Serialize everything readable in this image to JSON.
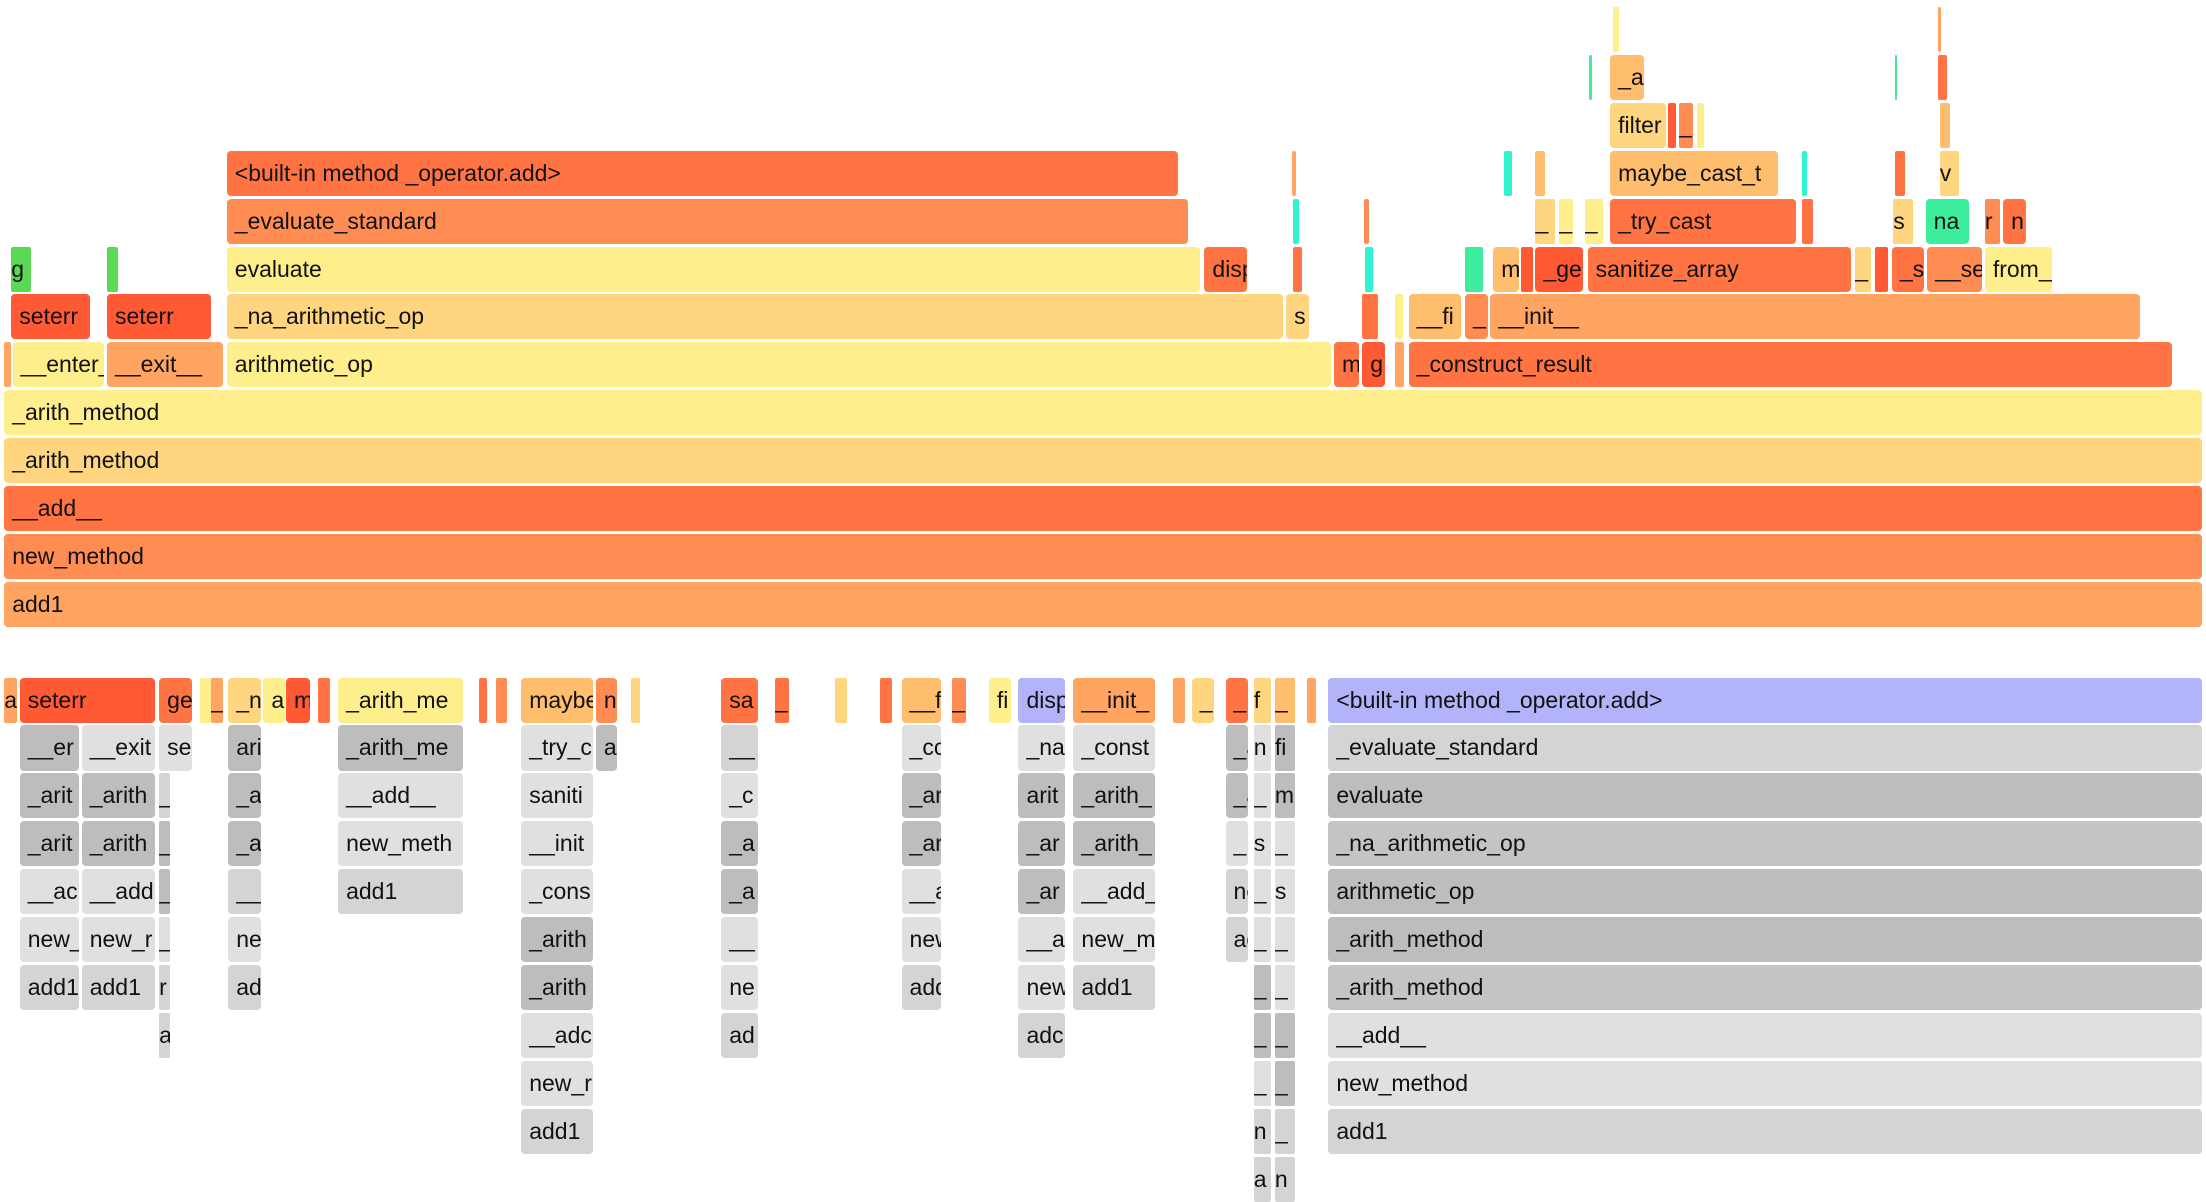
{
  "colors": {
    "red": "#ff5a33",
    "orange_dark": "#ff7442",
    "orange": "#ff8c52",
    "orange_light": "#ffa561",
    "amber": "#ffbd6e",
    "gold": "#ffd580",
    "yellow": "#ffee8c",
    "green": "#5bd955",
    "teal": "#3ded9e",
    "cyan": "#2ef5d0",
    "lavender": "#b3b3fa",
    "gray1": "#e0e0e0",
    "gray2": "#d4d4d4",
    "gray3": "#c4c4c4",
    "gray4": "#bdbdbd"
  },
  "flame_graph": {
    "frames": [
      {
        "label": "add1",
        "color": "orange_light"
      },
      {
        "label": "new_method",
        "color": "orange"
      },
      {
        "label": "__add__",
        "color": "orange_dark"
      },
      {
        "label": "_arith_method",
        "color": "gold"
      },
      {
        "label": "_arith_method",
        "color": "yellow"
      },
      {
        "label": "",
        "color": "orange_light"
      },
      {
        "label": "__enter__",
        "color": "yellow"
      },
      {
        "label": "__exit__",
        "color": "orange_light"
      },
      {
        "label": "arithmetic_op",
        "color": "yellow"
      },
      {
        "label": "m",
        "color": "orange_dark"
      },
      {
        "label": "g",
        "color": "red"
      },
      {
        "label": "",
        "color": "orange_light"
      },
      {
        "label": "_construct_result",
        "color": "orange_dark"
      },
      {
        "label": "seterr",
        "color": "red"
      },
      {
        "label": "seterr",
        "color": "red"
      },
      {
        "label": "_na_arithmetic_op",
        "color": "gold"
      },
      {
        "label": "s",
        "color": "gold"
      },
      {
        "label": "",
        "color": "orange_dark"
      },
      {
        "label": "",
        "color": "yellow"
      },
      {
        "label": "__fi",
        "color": "amber"
      },
      {
        "label": "_",
        "color": "orange"
      },
      {
        "label": "__init__",
        "color": "orange_light"
      },
      {
        "label": "g",
        "color": "green"
      },
      {
        "label": "",
        "color": "green"
      },
      {
        "label": "evaluate",
        "color": "yellow"
      },
      {
        "label": "disp",
        "color": "orange_dark"
      },
      {
        "label": "",
        "color": "orange_dark"
      },
      {
        "label": "",
        "color": "cyan"
      },
      {
        "label": "",
        "color": "teal"
      },
      {
        "label": "m",
        "color": "amber"
      },
      {
        "label": "",
        "color": "red"
      },
      {
        "label": "_ge",
        "color": "red"
      },
      {
        "label": "sanitize_array",
        "color": "orange_dark"
      },
      {
        "label": "_",
        "color": "gold"
      },
      {
        "label": "",
        "color": "red"
      },
      {
        "label": "_s",
        "color": "orange_dark"
      },
      {
        "label": "__se",
        "color": "orange"
      },
      {
        "label": "from_",
        "color": "yellow"
      },
      {
        "label": "_evaluate_standard",
        "color": "orange"
      },
      {
        "label": "",
        "color": "cyan"
      },
      {
        "label": "",
        "color": "orange"
      },
      {
        "label": "_",
        "color": "gold"
      },
      {
        "label": "_",
        "color": "yellow"
      },
      {
        "label": "_",
        "color": "yellow"
      },
      {
        "label": "_try_cast",
        "color": "orange_dark"
      },
      {
        "label": "",
        "color": "orange_dark"
      },
      {
        "label": "s",
        "color": "gold"
      },
      {
        "label": "na",
        "color": "teal"
      },
      {
        "label": "r",
        "color": "orange"
      },
      {
        "label": "n",
        "color": "orange_dark"
      },
      {
        "label": "<built-in method _operator.add>",
        "color": "orange_dark"
      },
      {
        "label": "",
        "color": "orange_light"
      },
      {
        "label": "",
        "color": "cyan"
      },
      {
        "label": "",
        "color": "amber"
      },
      {
        "label": "maybe_cast_t",
        "color": "amber"
      },
      {
        "label": "",
        "color": "cyan"
      },
      {
        "label": "",
        "color": "orange_dark"
      },
      {
        "label": "v",
        "color": "gold"
      },
      {
        "label": "filter",
        "color": "gold"
      },
      {
        "label": "",
        "color": "red"
      },
      {
        "label": "_",
        "color": "orange"
      },
      {
        "label": "",
        "color": "yellow"
      },
      {
        "label": "",
        "color": "amber"
      },
      {
        "label": "_a",
        "color": "amber"
      },
      {
        "label": "",
        "color": "orange_dark"
      },
      {
        "label": "",
        "color": "teal"
      },
      {
        "label": "",
        "color": "teal"
      },
      {
        "label": "",
        "color": "yellow"
      },
      {
        "label": "",
        "color": "orange_light"
      }
    ]
  },
  "icicle_graph": {
    "frames": [
      {
        "label": "a",
        "color": "orange_light"
      },
      {
        "label": "seterr",
        "color": "red"
      },
      {
        "label": "ge",
        "color": "orange_dark"
      },
      {
        "label": "",
        "color": "yellow"
      },
      {
        "label": "_",
        "color": "orange_light"
      },
      {
        "label": "_n",
        "color": "gold"
      },
      {
        "label": "a",
        "color": "yellow"
      },
      {
        "label": "m",
        "color": "red"
      },
      {
        "label": "",
        "color": "orange_dark"
      },
      {
        "label": "_arith_me",
        "color": "yellow"
      },
      {
        "label": "",
        "color": "orange_dark"
      },
      {
        "label": "",
        "color": "orange"
      },
      {
        "label": "maybe",
        "color": "amber"
      },
      {
        "label": "n",
        "color": "orange"
      },
      {
        "label": "",
        "color": "gold"
      },
      {
        "label": "sa",
        "color": "orange_dark"
      },
      {
        "label": "_",
        "color": "orange_dark"
      },
      {
        "label": "",
        "color": "gold"
      },
      {
        "label": "",
        "color": "orange_dark"
      },
      {
        "label": "__f",
        "color": "amber"
      },
      {
        "label": "_",
        "color": "orange"
      },
      {
        "label": "fi",
        "color": "yellow"
      },
      {
        "label": "disp",
        "color": "lavender"
      },
      {
        "label": "__init_",
        "color": "orange_light"
      },
      {
        "label": "",
        "color": "orange_light"
      },
      {
        "label": "_",
        "color": "gold"
      },
      {
        "label": "_",
        "color": "orange_dark"
      },
      {
        "label": "f",
        "color": "gold"
      },
      {
        "label": "_",
        "color": "amber"
      },
      {
        "label": "",
        "color": "orange_light"
      },
      {
        "label": "<built-in method _operator.add>",
        "color": "lavender"
      },
      {
        "label": "__er",
        "color": "gray4"
      },
      {
        "label": "_arit",
        "color": "gray4"
      },
      {
        "label": "_arit",
        "color": "gray4"
      },
      {
        "label": "__ac",
        "color": "gray1"
      },
      {
        "label": "new_",
        "color": "gray1"
      },
      {
        "label": "add1",
        "color": "gray2"
      },
      {
        "label": "__exit",
        "color": "gray1"
      },
      {
        "label": "_arith",
        "color": "gray4"
      },
      {
        "label": "_arith",
        "color": "gray4"
      },
      {
        "label": "__add",
        "color": "gray1"
      },
      {
        "label": "new_r",
        "color": "gray1"
      },
      {
        "label": "add1",
        "color": "gray2"
      },
      {
        "label": "se",
        "color": "gray1"
      },
      {
        "label": "_",
        "color": "gray2"
      },
      {
        "label": "_",
        "color": "gray4"
      },
      {
        "label": "_",
        "color": "gray4"
      },
      {
        "label": "_",
        "color": "gray1"
      },
      {
        "label": "r",
        "color": "gray2"
      },
      {
        "label": "a",
        "color": "gray2"
      },
      {
        "label": "ari",
        "color": "gray4"
      },
      {
        "label": "_a",
        "color": "gray4"
      },
      {
        "label": "_a",
        "color": "gray4"
      },
      {
        "label": "__",
        "color": "gray2"
      },
      {
        "label": "ne",
        "color": "gray1"
      },
      {
        "label": "ad",
        "color": "gray2"
      },
      {
        "label": "_arith_me",
        "color": "gray4"
      },
      {
        "label": "__add__",
        "color": "gray1"
      },
      {
        "label": "new_meth",
        "color": "gray1"
      },
      {
        "label": "add1",
        "color": "gray2"
      },
      {
        "label": "_try_c",
        "color": "gray1"
      },
      {
        "label": "saniti",
        "color": "gray1"
      },
      {
        "label": "__init",
        "color": "gray1"
      },
      {
        "label": "_cons",
        "color": "gray1"
      },
      {
        "label": "_arith",
        "color": "gray4"
      },
      {
        "label": "_arith",
        "color": "gray4"
      },
      {
        "label": "__adc",
        "color": "gray1"
      },
      {
        "label": "new_r",
        "color": "gray1"
      },
      {
        "label": "add1",
        "color": "gray2"
      },
      {
        "label": "a",
        "color": "gray4"
      },
      {
        "label": "__",
        "color": "gray2"
      },
      {
        "label": "_c",
        "color": "gray1"
      },
      {
        "label": "_a",
        "color": "gray4"
      },
      {
        "label": "_a",
        "color": "gray4"
      },
      {
        "label": "__",
        "color": "gray1"
      },
      {
        "label": "ne",
        "color": "gray1"
      },
      {
        "label": "ad",
        "color": "gray2"
      },
      {
        "label": "_cc",
        "color": "gray1"
      },
      {
        "label": "_ar",
        "color": "gray4"
      },
      {
        "label": "_ar",
        "color": "gray4"
      },
      {
        "label": "__a",
        "color": "gray1"
      },
      {
        "label": "new",
        "color": "gray1"
      },
      {
        "label": "add",
        "color": "gray2"
      },
      {
        "label": "_na",
        "color": "gray1"
      },
      {
        "label": "arit",
        "color": "gray4"
      },
      {
        "label": "_ar",
        "color": "gray4"
      },
      {
        "label": "_ar",
        "color": "gray4"
      },
      {
        "label": "__a",
        "color": "gray1"
      },
      {
        "label": "new",
        "color": "gray1"
      },
      {
        "label": "adc",
        "color": "gray2"
      },
      {
        "label": "_const",
        "color": "gray1"
      },
      {
        "label": "_arith_",
        "color": "gray4"
      },
      {
        "label": "_arith_",
        "color": "gray4"
      },
      {
        "label": "__add_",
        "color": "gray1"
      },
      {
        "label": "new_m",
        "color": "gray1"
      },
      {
        "label": "add1",
        "color": "gray2"
      },
      {
        "label": "_a",
        "color": "gray4"
      },
      {
        "label": "_a",
        "color": "gray4"
      },
      {
        "label": "_",
        "color": "gray1"
      },
      {
        "label": "ne",
        "color": "gray2"
      },
      {
        "label": "ad",
        "color": "gray2"
      },
      {
        "label": "n",
        "color": "gray1"
      },
      {
        "label": "_",
        "color": "gray1"
      },
      {
        "label": "s",
        "color": "gray1"
      },
      {
        "label": "_",
        "color": "gray1"
      },
      {
        "label": "_",
        "color": "gray1"
      },
      {
        "label": "_",
        "color": "gray4"
      },
      {
        "label": "_",
        "color": "gray4"
      },
      {
        "label": "_",
        "color": "gray1"
      },
      {
        "label": "n",
        "color": "gray2"
      },
      {
        "label": "a",
        "color": "gray2"
      },
      {
        "label": "fi",
        "color": "gray4"
      },
      {
        "label": "m",
        "color": "gray4"
      },
      {
        "label": "_",
        "color": "gray1"
      },
      {
        "label": "s",
        "color": "gray1"
      },
      {
        "label": "_",
        "color": "gray1"
      },
      {
        "label": "_",
        "color": "gray1"
      },
      {
        "label": "_",
        "color": "gray4"
      },
      {
        "label": "_",
        "color": "gray4"
      },
      {
        "label": "_",
        "color": "gray2"
      },
      {
        "label": "n",
        "color": "gray2"
      },
      {
        "label": "_evaluate_standard",
        "color": "gray2"
      },
      {
        "label": "evaluate",
        "color": "gray4"
      },
      {
        "label": "_na_arithmetic_op",
        "color": "gray3"
      },
      {
        "label": "arithmetic_op",
        "color": "gray4"
      },
      {
        "label": "_arith_method",
        "color": "gray4"
      },
      {
        "label": "_arith_method",
        "color": "gray3"
      },
      {
        "label": "__add__",
        "color": "gray1"
      },
      {
        "label": "new_method",
        "color": "gray1"
      },
      {
        "label": "add1",
        "color": "gray2"
      }
    ]
  }
}
